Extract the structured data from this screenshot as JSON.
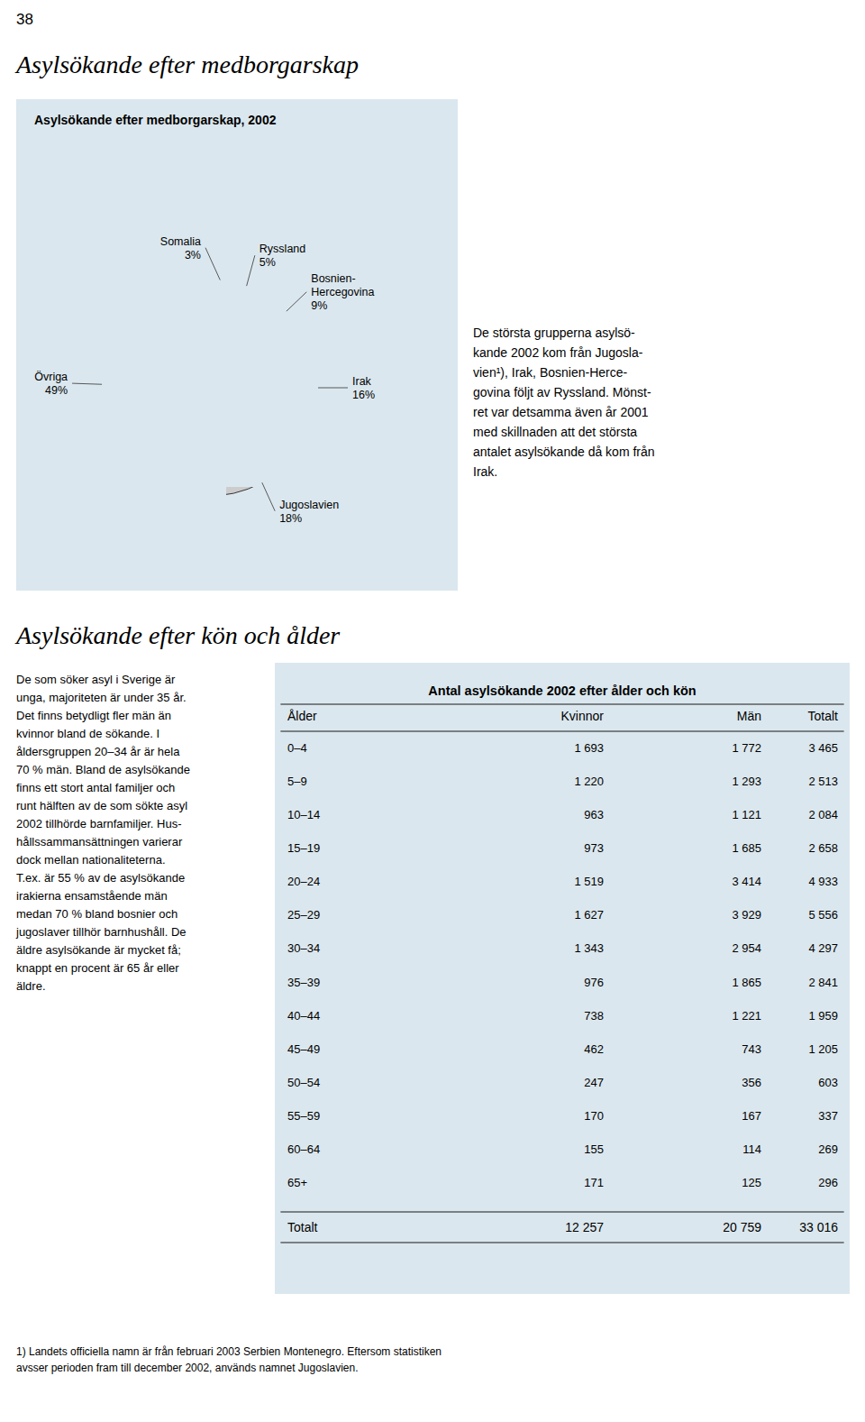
{
  "page_number": "38",
  "section1_title": "Asylsökande efter medborgarskap",
  "chart_data": {
    "type": "pie",
    "title": "Asylsökande efter medborgarskap, 2002",
    "categories": [
      "Somalia",
      "Ryssland",
      "Bosnien-\nHercegovina",
      "Irak",
      "Jugoslavien",
      "Övriga"
    ],
    "values": [
      3,
      5,
      9,
      16,
      18,
      49
    ],
    "value_labels": [
      "3%",
      "5%",
      "9%",
      "16%",
      "18%",
      "49%"
    ],
    "colors": [
      "#111111",
      "#777777",
      "#444444",
      "#aaaaaa",
      "#cccccc",
      "#ffffff"
    ],
    "data_labels": true
  },
  "text1": "De största grupperna asylsö-\nkande 2002 kom från Jugosla-\nvien¹), Irak, Bosnien-Herce-\ngovina följt av Ryssland. Mönst-\nret var detsamma även år 2001\nmed skillnaden att det största\nantalet asylsökande då kom från\nIrak.",
  "section2_title": "Asylsökande efter kön och ålder",
  "text2": "De som söker asyl i Sverige är\nunga, majoriteten är under 35 år.\nDet finns betydligt fler män än\nkvinnor bland de sökande. I\nåldersgruppen 20–34 år är hela\n70 % män. Bland de asylsökande\nfinns ett stort antal familjer och\nrunt hälften av de som sökte asyl\n2002 tillhörde barnfamiljer. Hus-\nhållssammansättningen varierar\ndock mellan nationaliteterna.\nT.ex. är 55 % av de asylsökande\nirakierna ensamstående män\nmedan 70 % bland bosnier och\njugoslaver tillhör barnhushåll. De\näldre asylsökande är mycket få;\nknappt en procent är 65 år eller\näldre.",
  "table": {
    "title": "Antal asylsökande 2002 efter ålder och kön",
    "headers": [
      "Ålder",
      "Kvinnor",
      "Män",
      "Totalt"
    ],
    "rows": [
      [
        "0–4",
        "1 693",
        "1 772",
        "3 465"
      ],
      [
        "5–9",
        "1 220",
        "1 293",
        "2 513"
      ],
      [
        "10–14",
        "963",
        "1 121",
        "2 084"
      ],
      [
        "15–19",
        "973",
        "1 685",
        "2 658"
      ],
      [
        "20–24",
        "1 519",
        "3 414",
        "4 933"
      ],
      [
        "25–29",
        "1 627",
        "3 929",
        "5 556"
      ],
      [
        "30–34",
        "1 343",
        "2 954",
        "4 297"
      ],
      [
        "35–39",
        "976",
        "1 865",
        "2 841"
      ],
      [
        "40–44",
        "738",
        "1 221",
        "1 959"
      ],
      [
        "45–49",
        "462",
        "743",
        "1 205"
      ],
      [
        "50–54",
        "247",
        "356",
        "603"
      ],
      [
        "55–59",
        "170",
        "167",
        "337"
      ],
      [
        "60–64",
        "155",
        "114",
        "269"
      ],
      [
        "65+",
        "171",
        "125",
        "296"
      ]
    ],
    "total": [
      "Totalt",
      "12 257",
      "20 759",
      "33 016"
    ]
  },
  "footnote": "1) Landets officiella namn är från februari 2003 Serbien Montenegro. Eftersom statistiken\navsser perioden fram till december 2002, används namnet Jugoslavien."
}
